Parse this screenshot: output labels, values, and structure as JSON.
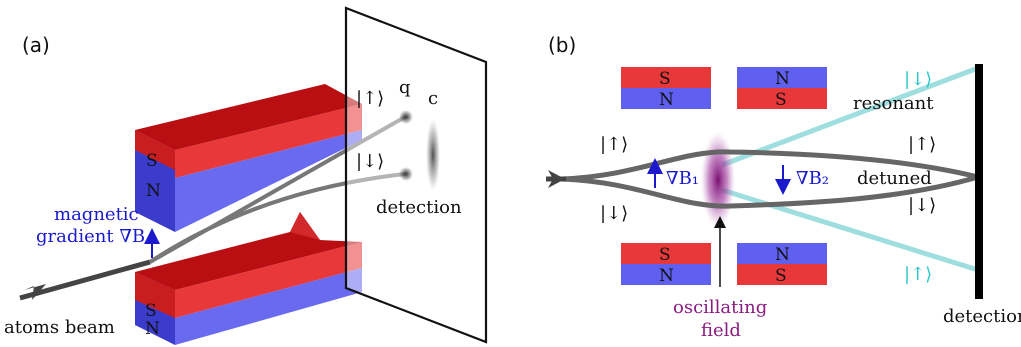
{
  "panel_a": {
    "label": "(a)",
    "state_up": "|↑⟩",
    "state_down": "|↓⟩",
    "q": "q",
    "c": "c",
    "detection": "detection",
    "gradient_line1": "magnetic",
    "gradient_line2": "gradient ∇B",
    "beam": "atoms beam",
    "top_magnet": {
      "S": "S",
      "N": "N"
    },
    "bottom_magnet": {
      "S": "S",
      "N": "N"
    }
  },
  "panel_b": {
    "label": "(b)",
    "magnets": {
      "top_left": {
        "top": "S",
        "bottom": "N"
      },
      "top_right": {
        "top": "N",
        "bottom": "S"
      },
      "bottom_left": {
        "top": "S",
        "bottom": "N"
      },
      "bottom_right": {
        "top": "N",
        "bottom": "S"
      }
    },
    "state_up_left": "|↑⟩",
    "state_down_left": "|↓⟩",
    "grad1": "∇B₁",
    "grad2": "∇B₂",
    "resonant": "resonant",
    "detuned": "detuned",
    "state_up_right": "|↑⟩",
    "state_down_right": "|↓⟩",
    "state_down_cyan": "|↓⟩",
    "state_up_cyan": "|↑⟩",
    "oscillating1": "oscillating",
    "oscillating2": "field",
    "detection": "detection"
  },
  "colors": {
    "red": "#e8383a",
    "blue": "#6060f0",
    "cyan": "#2cc6cf",
    "purple": "#8a1b80",
    "arrow_blue": "#1a1acc"
  }
}
